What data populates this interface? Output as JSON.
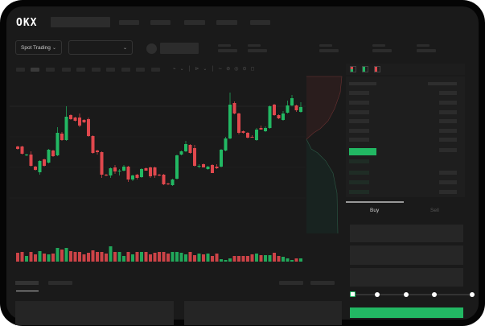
{
  "header": {
    "logo": "OKX",
    "nav_count": 5
  },
  "toolbar": {
    "market_selector": "Spot Trading",
    "pair_selector": ""
  },
  "orderbook": {
    "icons": [
      "both-sides-icon",
      "bids-only-icon",
      "asks-only-icon"
    ]
  },
  "trade": {
    "tabs": [
      "Buy",
      "Sell"
    ],
    "active_tab": "Buy",
    "slider_percent": 0,
    "slider_marks": [
      0,
      25,
      50,
      75,
      100
    ]
  },
  "colors": {
    "up": "#22b863",
    "down": "#e0484d",
    "background": "#1a1a1a"
  },
  "chart_data": {
    "type": "candlestick",
    "candles": [
      [
        118,
        119,
        114,
        115
      ],
      [
        118,
        119,
        108,
        109
      ],
      [
        107,
        109,
        106,
        108
      ],
      [
        108,
        112,
        93,
        94
      ],
      [
        93,
        94,
        88,
        89
      ],
      [
        86,
        101,
        83,
        100
      ],
      [
        102,
        103,
        93,
        94
      ],
      [
        98,
        115,
        97,
        114
      ],
      [
        113,
        114,
        105,
        106
      ],
      [
        107,
        142,
        106,
        135
      ],
      [
        134,
        136,
        125,
        126
      ],
      [
        126,
        168,
        125,
        155
      ],
      [
        157,
        158,
        151,
        152
      ],
      [
        154,
        155,
        149,
        150
      ],
      [
        154,
        159,
        142,
        144
      ],
      [
        151,
        152,
        147,
        148
      ],
      [
        152,
        154,
        130,
        131
      ],
      [
        131,
        132,
        109,
        110
      ],
      [
        113,
        114,
        108,
        111
      ],
      [
        111,
        112,
        79,
        83
      ],
      [
        83,
        84,
        81,
        82
      ],
      [
        82,
        92,
        79,
        91
      ],
      [
        92,
        95,
        84,
        87
      ],
      [
        87,
        90,
        82,
        88
      ],
      [
        88,
        95,
        87,
        93
      ],
      [
        93,
        94,
        74,
        77
      ],
      [
        77,
        83,
        75,
        82
      ],
      [
        83,
        84,
        77,
        79
      ],
      [
        80,
        91,
        79,
        90
      ],
      [
        91,
        92,
        88,
        88
      ],
      [
        92,
        93,
        79,
        81
      ],
      [
        92,
        93,
        79,
        82
      ],
      [
        83,
        84,
        81,
        82
      ],
      [
        83,
        84,
        70,
        71
      ],
      [
        72,
        73,
        70,
        71
      ],
      [
        70,
        78,
        69,
        77
      ],
      [
        78,
        108,
        77,
        107
      ],
      [
        108,
        113,
        107,
        112
      ],
      [
        112,
        125,
        111,
        121
      ],
      [
        120,
        121,
        109,
        110
      ],
      [
        116,
        120,
        93,
        94
      ],
      [
        93,
        96,
        91,
        94
      ],
      [
        96,
        97,
        92,
        92
      ],
      [
        90,
        94,
        89,
        93
      ],
      [
        95,
        96,
        85,
        85
      ],
      [
        93,
        96,
        90,
        91
      ],
      [
        93,
        115,
        92,
        114
      ],
      [
        113,
        130,
        112,
        128
      ],
      [
        128,
        185,
        127,
        170
      ],
      [
        172,
        174,
        158,
        159
      ],
      [
        159,
        160,
        133,
        135
      ],
      [
        137,
        138,
        134,
        135
      ],
      [
        135,
        136,
        128,
        129
      ],
      [
        130,
        132,
        129,
        129
      ],
      [
        126,
        141,
        125,
        139
      ],
      [
        141,
        144,
        139,
        139
      ],
      [
        137,
        143,
        136,
        141
      ],
      [
        141,
        169,
        140,
        168
      ],
      [
        170,
        171,
        156,
        157
      ],
      [
        157,
        158,
        152,
        153
      ],
      [
        151,
        162,
        150,
        159
      ],
      [
        160,
        175,
        159,
        169
      ],
      [
        169,
        182,
        168,
        178
      ],
      [
        169,
        170,
        161,
        163
      ],
      [
        161,
        173,
        160,
        167
      ]
    ],
    "volume": [
      11,
      12,
      7,
      12,
      9,
      13,
      10,
      9,
      10,
      17,
      15,
      17,
      13,
      12,
      12,
      9,
      11,
      14,
      12,
      12,
      10,
      19,
      12,
      12,
      7,
      12,
      9,
      12,
      12,
      12,
      9,
      11,
      12,
      12,
      10,
      12,
      12,
      11,
      9,
      12,
      8,
      10,
      9,
      10,
      7,
      10,
      3,
      2,
      4,
      7,
      7,
      7,
      7,
      9,
      10,
      8,
      8,
      8,
      11,
      7,
      6,
      4,
      2,
      4,
      4
    ]
  }
}
